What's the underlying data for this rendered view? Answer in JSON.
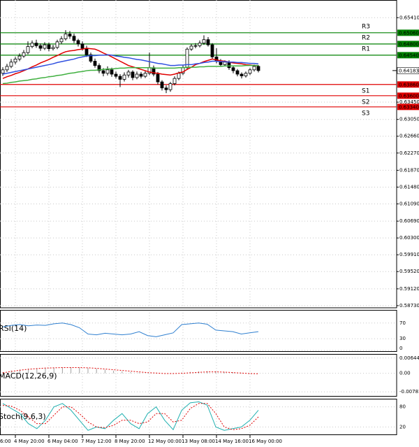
{
  "chart_data": {
    "type": "candlestick",
    "categories": [
      null,
      null,
      null,
      "4 May 20:00",
      null,
      null,
      null,
      null,
      null,
      null,
      null,
      "6 May 04:00",
      null,
      null,
      null,
      null,
      null,
      null,
      null,
      "7 May 12:00",
      null,
      null,
      null,
      null,
      null,
      null,
      null,
      "8 May 20:00",
      null,
      null,
      null,
      null,
      null,
      null,
      null,
      "12 May 00:00",
      null,
      null,
      null,
      null,
      null,
      null,
      null,
      "13 May 08:00",
      null,
      null,
      null,
      null,
      null,
      null,
      null,
      "14 May 16:00",
      null,
      null,
      null,
      null,
      null,
      null,
      null,
      "16 May 00:00",
      null,
      null
    ],
    "x_axis_left_fragment": "6:00",
    "open": [
      0.6412,
      0.642,
      0.6428,
      0.6438,
      0.6445,
      0.6452,
      0.646,
      0.6474,
      0.6482,
      0.6476,
      0.647,
      0.6478,
      0.6469,
      0.6472,
      0.6485,
      0.6492,
      0.6503,
      0.6498,
      0.6488,
      0.648,
      0.647,
      0.6455,
      0.644,
      0.643,
      0.6418,
      0.6412,
      0.642,
      0.641,
      0.6405,
      0.6398,
      0.6408,
      0.6415,
      0.6402,
      0.641,
      0.6405,
      0.6412,
      0.6425,
      0.641,
      0.6392,
      0.6378,
      0.6374,
      0.6388,
      0.64,
      0.6412,
      0.6425,
      0.6468,
      0.6475,
      0.6476,
      0.6482,
      0.649,
      0.6478,
      0.645,
      0.644,
      0.6432,
      0.6438,
      0.6425,
      0.6418,
      0.641,
      0.6406,
      0.6412,
      0.642,
      0.6428
    ],
    "high": [
      0.6426,
      0.6434,
      0.6445,
      0.645,
      0.6458,
      0.6466,
      0.6486,
      0.6488,
      0.649,
      0.6481,
      0.6484,
      0.6483,
      0.6478,
      0.649,
      0.6498,
      0.6512,
      0.651,
      0.6504,
      0.6492,
      0.6486,
      0.6476,
      0.646,
      0.6446,
      0.6435,
      0.6424,
      0.6428,
      0.6425,
      0.6416,
      0.641,
      0.6414,
      0.642,
      0.6419,
      0.6416,
      0.6415,
      0.6418,
      0.646,
      0.643,
      0.6415,
      0.6396,
      0.6384,
      0.6392,
      0.6405,
      0.6416,
      0.643,
      0.6472,
      0.648,
      0.6482,
      0.6488,
      0.65,
      0.6496,
      0.6482,
      0.647,
      0.6445,
      0.6442,
      0.6442,
      0.643,
      0.6422,
      0.6414,
      0.6416,
      0.6424,
      0.6432,
      0.6431
    ],
    "low": [
      0.6406,
      0.6415,
      0.6424,
      0.6433,
      0.644,
      0.6448,
      0.6456,
      0.647,
      0.6471,
      0.6464,
      0.6466,
      0.6463,
      0.6465,
      0.6468,
      0.648,
      0.6488,
      0.6492,
      0.6482,
      0.6474,
      0.6465,
      0.645,
      0.6436,
      0.6425,
      0.6412,
      0.6405,
      0.6407,
      0.6404,
      0.64,
      0.638,
      0.6393,
      0.6402,
      0.6396,
      0.6398,
      0.64,
      0.6401,
      0.6408,
      0.6405,
      0.6386,
      0.6372,
      0.6366,
      0.6369,
      0.6384,
      0.6396,
      0.6408,
      0.642,
      0.6464,
      0.647,
      0.6472,
      0.6478,
      0.6474,
      0.6445,
      0.6435,
      0.6428,
      0.6428,
      0.642,
      0.6412,
      0.6405,
      0.64,
      0.6402,
      0.6408,
      0.6416,
      0.6414
    ],
    "close": [
      0.642,
      0.6428,
      0.6438,
      0.6445,
      0.6452,
      0.646,
      0.6474,
      0.6482,
      0.6476,
      0.647,
      0.6478,
      0.6469,
      0.6472,
      0.6485,
      0.6492,
      0.6503,
      0.6498,
      0.6488,
      0.648,
      0.647,
      0.6455,
      0.644,
      0.643,
      0.6418,
      0.6412,
      0.642,
      0.641,
      0.6405,
      0.6398,
      0.6408,
      0.6415,
      0.6402,
      0.641,
      0.6405,
      0.6412,
      0.6425,
      0.641,
      0.6392,
      0.6378,
      0.6374,
      0.6388,
      0.64,
      0.6412,
      0.6425,
      0.6468,
      0.6475,
      0.6476,
      0.6482,
      0.649,
      0.6478,
      0.645,
      0.644,
      0.6432,
      0.6438,
      0.6425,
      0.6418,
      0.641,
      0.6406,
      0.6412,
      0.642,
      0.6428,
      0.64183
    ],
    "up_color": "#ffffff",
    "down_color": "#000000",
    "wick_color": "#000000",
    "overlays": [
      {
        "color": "#e00000",
        "values": [
          0.64,
          0.6404,
          0.6407,
          0.6411,
          0.6414,
          0.6418,
          0.6422,
          0.6427,
          0.6431,
          0.6436,
          0.644,
          0.6444,
          0.6449,
          0.6453,
          0.6458,
          0.6462,
          0.6464,
          0.6465,
          0.6467,
          0.6468,
          0.647,
          0.6469,
          0.6468,
          0.6464,
          0.6459,
          0.6455,
          0.645,
          0.6445,
          0.644,
          0.6435,
          0.643,
          0.6427,
          0.6424,
          0.6421,
          0.6418,
          0.6415,
          0.6413,
          0.6412,
          0.641,
          0.6409,
          0.6408,
          0.641,
          0.6413,
          0.6415,
          0.6421,
          0.6426,
          0.6432,
          0.6435,
          0.6439,
          0.6442,
          0.6445,
          0.6443,
          0.6441,
          0.644,
          0.6438,
          0.6436,
          0.6435,
          0.6434,
          0.6432,
          0.6431,
          0.643,
          0.643
        ]
      },
      {
        "color": "#3050e0",
        "values": [
          0.641,
          0.6412,
          0.6414,
          0.6416,
          0.6418,
          0.642,
          0.6422,
          0.6424,
          0.6426,
          0.6428,
          0.643,
          0.6432,
          0.6434,
          0.6437,
          0.6439,
          0.6441,
          0.6443,
          0.6445,
          0.6448,
          0.645,
          0.6452,
          0.6453,
          0.6453,
          0.6454,
          0.6454,
          0.6455,
          0.6454,
          0.6452,
          0.6451,
          0.6449,
          0.6448,
          0.6446,
          0.6444,
          0.6443,
          0.6441,
          0.6439,
          0.6437,
          0.6435,
          0.6434,
          0.6432,
          0.643,
          0.643,
          0.6431,
          0.6431,
          0.6432,
          0.6432,
          0.6434,
          0.6435,
          0.6437,
          0.6438,
          0.644,
          0.644,
          0.6439,
          0.6439,
          0.6438,
          0.6438,
          0.6437,
          0.6437,
          0.6436,
          0.6435,
          0.6435,
          0.6434
        ]
      },
      {
        "color": "#40b040",
        "values": [
          0.6388,
          0.6389,
          0.6391,
          0.6392,
          0.6394,
          0.6395,
          0.6396,
          0.6398,
          0.6399,
          0.6401,
          0.6402,
          0.6404,
          0.6405,
          0.6407,
          0.6408,
          0.641,
          0.6412,
          0.6413,
          0.6415,
          0.6416,
          0.6418,
          0.6419,
          0.6419,
          0.642,
          0.6421,
          0.6422,
          0.6422,
          0.6423,
          0.6424,
          0.6424,
          0.6425,
          0.6425,
          0.6425,
          0.6425,
          0.6425,
          0.6425,
          0.6424,
          0.6424,
          0.6424,
          0.6424,
          0.6424,
          0.6424,
          0.6425,
          0.6425,
          0.6426,
          0.6426,
          0.6426,
          0.6427,
          0.6427,
          0.6428,
          0.6428,
          0.6428,
          0.6428,
          0.6429,
          0.6429,
          0.6429,
          0.6429,
          0.6429,
          0.643,
          0.643,
          0.643,
          0.643
        ]
      }
    ],
    "levels": [
      {
        "name": "R3",
        "value": 0.6506,
        "label": "0.65060",
        "color": "#008000"
      },
      {
        "name": "R2",
        "value": 0.648,
        "label": "0.64800",
        "color": "#008000"
      },
      {
        "name": "R1",
        "value": 0.6454,
        "label": "0.64540",
        "color": "#008000"
      },
      {
        "name": "S1",
        "value": 0.6386,
        "label": "0.63860",
        "color": "#e00000"
      },
      {
        "name": "S2",
        "value": 0.636,
        "label": "0.63600",
        "color": "#e00000"
      },
      {
        "name": "S3",
        "value": 0.6334,
        "label": "0.63340",
        "color": "#e00000"
      }
    ],
    "current_price": {
      "value": 0.64183,
      "label": "0.64183"
    },
    "ylim": [
      0.5868,
      0.6582
    ],
    "yticks": [
      {
        "value": 0.6541,
        "label": "0.65410"
      },
      {
        "value": 0.6345,
        "label": "0.63450"
      },
      {
        "value": 0.6305,
        "label": "0.63050"
      },
      {
        "value": 0.6266,
        "label": "0.62660"
      },
      {
        "value": 0.6227,
        "label": "0.62270"
      },
      {
        "value": 0.6187,
        "label": "0.61870"
      },
      {
        "value": 0.6148,
        "label": "0.61480"
      },
      {
        "value": 0.6109,
        "label": "0.61090"
      },
      {
        "value": 0.6069,
        "label": "0.60690"
      },
      {
        "value": 0.603,
        "label": "0.60300"
      },
      {
        "value": 0.5991,
        "label": "0.59910"
      },
      {
        "value": 0.5952,
        "label": "0.59520"
      },
      {
        "value": 0.5912,
        "label": "0.59120"
      },
      {
        "value": 0.5873,
        "label": "0.58730"
      }
    ],
    "grid": true,
    "indicators": [
      {
        "title": "RSI(14)",
        "ylim": [
          0,
          100
        ],
        "yticks": [
          70,
          30,
          0
        ],
        "series": [
          {
            "type": "line",
            "color": "#3080d0",
            "values": [
              60,
              64,
              66,
              63,
              65,
              64,
              68,
              70,
              66,
              58,
              42,
              40,
              44,
              42,
              40,
              42,
              48,
              38,
              35,
              40,
              45,
              66,
              68,
              70,
              67,
              52,
              50,
              48,
              42,
              45,
              48
            ]
          }
        ]
      },
      {
        "title": "MACD(12,26,9)",
        "ylim": [
          -0.00924,
          0.00756
        ],
        "yticks": [
          {
            "value": 0.00644,
            "label": "0.00644"
          },
          {
            "value": 0,
            "label": "0.00"
          },
          {
            "value": -0.00781,
            "label": "-0.00781"
          }
        ],
        "series": [
          {
            "type": "bar",
            "color": "#a0a0a0",
            "values": [
              0.0005,
              0.0012,
              0.0016,
              0.0019,
              0.0021,
              0.0023,
              0.0024,
              0.0025,
              0.0025,
              0.0024,
              0.0022,
              0.0019,
              0.0015,
              0.0011,
              0.0008,
              0.0005,
              0.0003,
              0.0001,
              -0.0001,
              -0.0002,
              -0.0001,
              0.0003,
              0.0006,
              0.0008,
              0.0009,
              0.0008,
              0.0006,
              0.0004,
              0.0002,
              0.0001,
              0.0
            ]
          },
          {
            "type": "line",
            "dash": true,
            "color": "#e00000",
            "values": [
              0.0002,
              0.0008,
              0.0013,
              0.0017,
              0.002,
              0.0022,
              0.0023,
              0.0024,
              0.0024,
              0.0024,
              0.0023,
              0.0021,
              0.0018,
              0.0015,
              0.0012,
              0.0009,
              0.0006,
              0.0003,
              0.0001,
              -0.0001,
              -0.0001,
              0.0,
              0.0002,
              0.0004,
              0.0006,
              0.0006,
              0.0005,
              0.0003,
              0.0001,
              -0.0001,
              -0.0002
            ]
          }
        ]
      },
      {
        "title": "Stoch(9,6,3)",
        "ylim": [
          0,
          100
        ],
        "yticks": [
          80,
          20
        ],
        "series": [
          {
            "type": "line",
            "color": "#20b0b0",
            "values": [
              90,
              75,
              60,
              30,
              15,
              40,
              80,
              90,
              70,
              40,
              10,
              20,
              15,
              40,
              60,
              30,
              15,
              60,
              80,
              40,
              12,
              70,
              92,
              95,
              85,
              20,
              10,
              15,
              20,
              40,
              70
            ]
          },
          {
            "type": "line",
            "dash": true,
            "color": "#e00000",
            "values": [
              85,
              82,
              70,
              50,
              30,
              30,
              55,
              80,
              80,
              60,
              35,
              20,
              18,
              25,
              40,
              40,
              30,
              35,
              60,
              60,
              35,
              40,
              75,
              90,
              90,
              60,
              20,
              12,
              15,
              25,
              50
            ]
          }
        ]
      }
    ]
  }
}
